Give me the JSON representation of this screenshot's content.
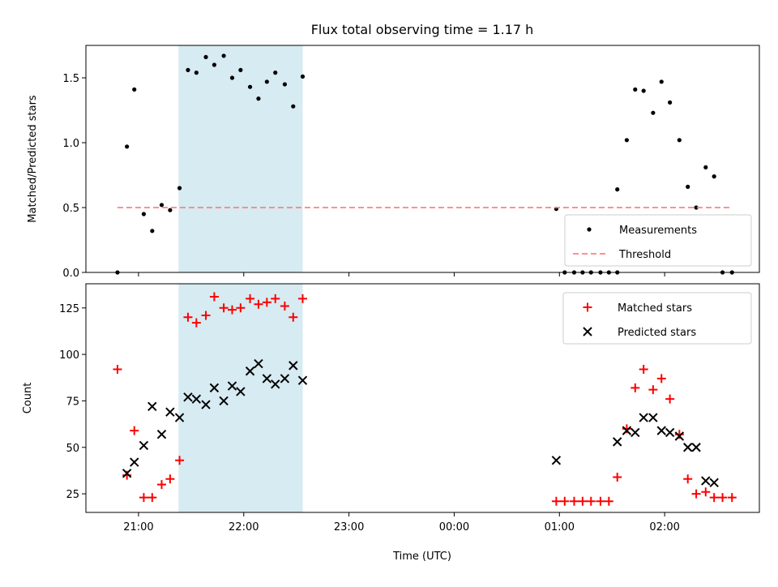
{
  "chart_data": {
    "title": "Flux total observing time = 1.17 h",
    "xlabel": "Time (UTC)",
    "x_units": "hours since 20:00 UTC (axis prints clock time)",
    "x_ticks": [
      {
        "label": "21:00",
        "value": 1
      },
      {
        "label": "22:00",
        "value": 2
      },
      {
        "label": "23:00",
        "value": 3
      },
      {
        "label": "00:00",
        "value": 4
      },
      {
        "label": "01:00",
        "value": 5
      },
      {
        "label": "02:00",
        "value": 6
      }
    ],
    "xlim": [
      0.5,
      6.9
    ],
    "highlight_span": {
      "from": 1.38,
      "to": 2.56,
      "color": "#add8e6"
    },
    "panels": [
      {
        "type": "scatter",
        "ylabel": "Matched/Predicted stars",
        "ylim": [
          0,
          1.75
        ],
        "yticks": [
          0,
          0.5,
          1.0,
          1.5
        ],
        "ytick_labels": [
          "0.0",
          "0.5",
          "1.0",
          "1.5"
        ],
        "legend_position": "lower-right",
        "series": [
          {
            "name": "Measurements",
            "marker": "dot",
            "color": "#000000",
            "points": [
              [
                0.8,
                0.0
              ],
              [
                0.89,
                0.97
              ],
              [
                0.96,
                1.41
              ],
              [
                1.05,
                0.45
              ],
              [
                1.13,
                0.32
              ],
              [
                1.22,
                0.52
              ],
              [
                1.3,
                0.48
              ],
              [
                1.39,
                0.65
              ],
              [
                1.47,
                1.56
              ],
              [
                1.55,
                1.54
              ],
              [
                1.64,
                1.66
              ],
              [
                1.72,
                1.6
              ],
              [
                1.81,
                1.67
              ],
              [
                1.89,
                1.5
              ],
              [
                1.97,
                1.56
              ],
              [
                2.06,
                1.43
              ],
              [
                2.14,
                1.34
              ],
              [
                2.22,
                1.47
              ],
              [
                2.3,
                1.54
              ],
              [
                2.39,
                1.45
              ],
              [
                2.47,
                1.28
              ],
              [
                2.56,
                1.51
              ],
              [
                4.97,
                0.49
              ],
              [
                5.05,
                0.0
              ],
              [
                5.14,
                0.0
              ],
              [
                5.22,
                0.0
              ],
              [
                5.3,
                0.0
              ],
              [
                5.39,
                0.0
              ],
              [
                5.47,
                0.0
              ],
              [
                5.55,
                0.0
              ],
              [
                5.55,
                0.64
              ],
              [
                5.64,
                1.02
              ],
              [
                5.72,
                1.41
              ],
              [
                5.8,
                1.4
              ],
              [
                5.89,
                1.23
              ],
              [
                5.97,
                1.47
              ],
              [
                6.05,
                1.31
              ],
              [
                6.14,
                1.02
              ],
              [
                6.22,
                0.66
              ],
              [
                6.3,
                0.5
              ],
              [
                6.39,
                0.81
              ],
              [
                6.47,
                0.74
              ],
              [
                6.55,
                0.0
              ],
              [
                6.64,
                0.0
              ]
            ]
          },
          {
            "name": "Threshold",
            "line": "dashed",
            "color": "#ff8080",
            "points": [
              [
                0.8,
                0.5
              ],
              [
                6.64,
                0.5
              ]
            ]
          }
        ]
      },
      {
        "type": "scatter",
        "ylabel": "Count",
        "ylim": [
          15,
          138
        ],
        "yticks": [
          25,
          50,
          75,
          100,
          125
        ],
        "ytick_labels": [
          "25",
          "50",
          "75",
          "100",
          "125"
        ],
        "legend_position": "top-right",
        "series": [
          {
            "name": "Matched stars",
            "marker": "plus",
            "color": "#ff0000",
            "points": [
              [
                0.8,
                92
              ],
              [
                0.89,
                35
              ],
              [
                0.96,
                59
              ],
              [
                1.05,
                23
              ],
              [
                1.13,
                23
              ],
              [
                1.22,
                30
              ],
              [
                1.3,
                33
              ],
              [
                1.39,
                43
              ],
              [
                1.47,
                120
              ],
              [
                1.55,
                117
              ],
              [
                1.64,
                121
              ],
              [
                1.72,
                131
              ],
              [
                1.81,
                125
              ],
              [
                1.89,
                124
              ],
              [
                1.97,
                125
              ],
              [
                2.06,
                130
              ],
              [
                2.14,
                127
              ],
              [
                2.22,
                128
              ],
              [
                2.3,
                130
              ],
              [
                2.39,
                126
              ],
              [
                2.47,
                120
              ],
              [
                2.56,
                130
              ],
              [
                4.97,
                21
              ],
              [
                5.05,
                21
              ],
              [
                5.14,
                21
              ],
              [
                5.22,
                21
              ],
              [
                5.3,
                21
              ],
              [
                5.39,
                21
              ],
              [
                5.47,
                21
              ],
              [
                5.55,
                34
              ],
              [
                5.64,
                60
              ],
              [
                5.72,
                82
              ],
              [
                5.8,
                92
              ],
              [
                5.89,
                81
              ],
              [
                5.97,
                87
              ],
              [
                6.05,
                76
              ],
              [
                6.14,
                57
              ],
              [
                6.22,
                33
              ],
              [
                6.3,
                25
              ],
              [
                6.39,
                26
              ],
              [
                6.47,
                23
              ],
              [
                6.55,
                23
              ],
              [
                6.64,
                23
              ]
            ]
          },
          {
            "name": "Predicted stars",
            "marker": "x",
            "color": "#000000",
            "points": [
              [
                0.89,
                36
              ],
              [
                0.96,
                42
              ],
              [
                1.05,
                51
              ],
              [
                1.13,
                72
              ],
              [
                1.22,
                57
              ],
              [
                1.3,
                69
              ],
              [
                1.39,
                66
              ],
              [
                1.47,
                77
              ],
              [
                1.55,
                76
              ],
              [
                1.64,
                73
              ],
              [
                1.72,
                82
              ],
              [
                1.81,
                75
              ],
              [
                1.89,
                83
              ],
              [
                1.97,
                80
              ],
              [
                2.06,
                91
              ],
              [
                2.14,
                95
              ],
              [
                2.22,
                87
              ],
              [
                2.3,
                84
              ],
              [
                2.39,
                87
              ],
              [
                2.47,
                94
              ],
              [
                2.56,
                86
              ],
              [
                4.97,
                43
              ],
              [
                5.55,
                53
              ],
              [
                5.64,
                59
              ],
              [
                5.72,
                58
              ],
              [
                5.8,
                66
              ],
              [
                5.89,
                66
              ],
              [
                5.97,
                59
              ],
              [
                6.05,
                58
              ],
              [
                6.14,
                56
              ],
              [
                6.22,
                50
              ],
              [
                6.3,
                50
              ],
              [
                6.39,
                32
              ],
              [
                6.47,
                31
              ]
            ]
          }
        ]
      }
    ]
  }
}
